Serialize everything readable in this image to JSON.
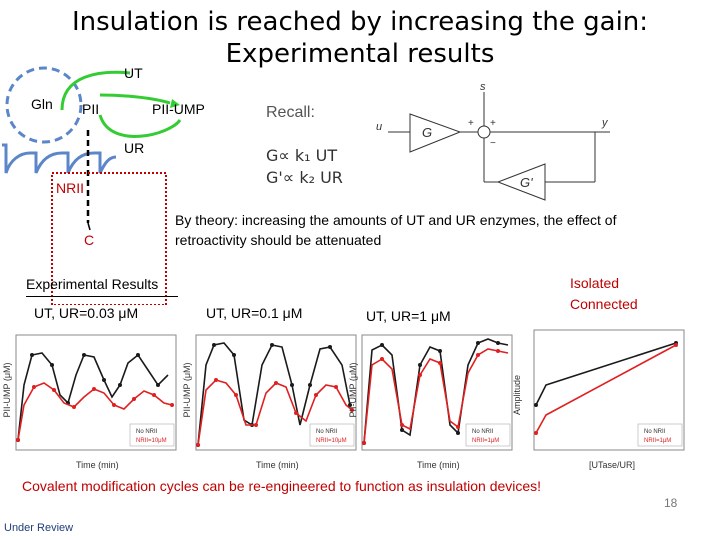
{
  "title_line1": "Insulation is reached by increasing the gain:",
  "title_line2": "Experimental results",
  "diagram": {
    "gln": "Gln",
    "ut": "UT",
    "pii": "PII",
    "pii_ump": "PII-UMP",
    "ur": "UR",
    "nrii": "NRII",
    "c": "C"
  },
  "recall": {
    "label": "Recall:",
    "eq1": "G∝ k₁ UT",
    "eq2": "G'∝ k₂ UR",
    "block_g": "G",
    "block_gp": "G'",
    "sig_u": "u",
    "sig_y": "y",
    "sig_s": "s"
  },
  "theory_text": "By theory: increasing the amounts of UT and UR enzymes, the effect of retroactivity should be attenuated",
  "experimental_results_heading": "Experimental Results",
  "plot_labels": {
    "p1": "UT, UR=0.03 μM",
    "p2": "UT, UR=0.1 μM",
    "p3": "UT, UR=1 μM"
  },
  "legend_isolated": "Isolated",
  "legend_connected": "Connected",
  "axis": {
    "ylabel": "PII-UMP (μM)",
    "xlabel": "Time (min)",
    "ylabel_amp": "Amplitude",
    "xlabel_amp": "[UTase/UR]"
  },
  "mini_legend": {
    "no_nrii": "No NRII",
    "nrii1": "NRII=10μM",
    "nrii2": "NRII=10μM",
    "nrii3": "NRII=1μM"
  },
  "bottom_text": "Covalent modification cycles can be re-engineered to function as insulation devices!",
  "page_number": "18",
  "footer": "Under Review",
  "colors": {
    "isolated": "#1a1a1a",
    "connected": "#e02020",
    "gln_circle": "#5b86c8",
    "arrow_green": "#33cc33",
    "dashed_box": "#c00000"
  }
}
